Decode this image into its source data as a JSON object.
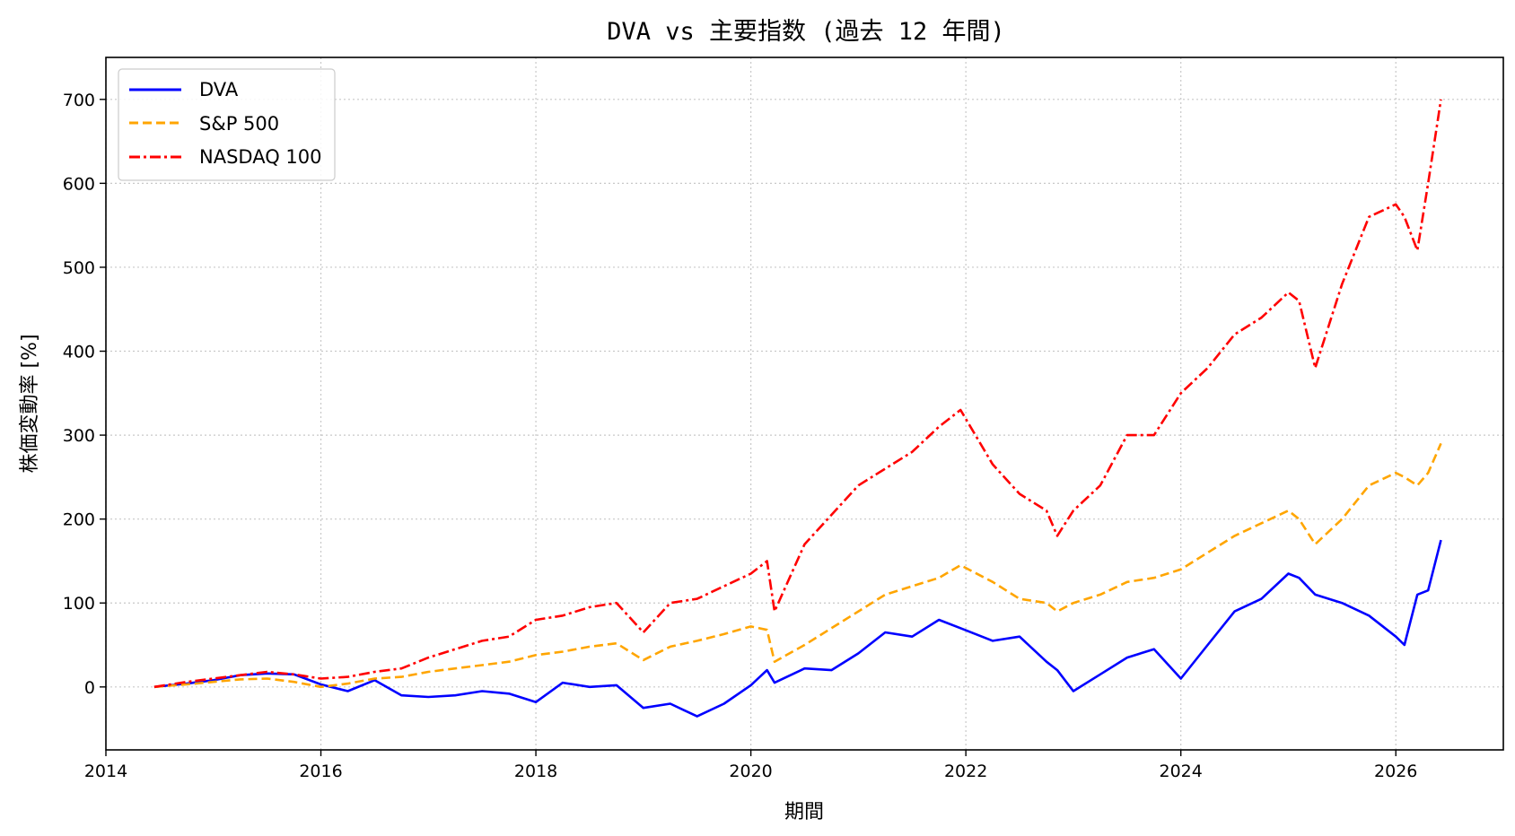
{
  "chart_data": {
    "type": "line",
    "title": "DVA vs 主要指数 (過去 12 年間)",
    "xlabel": "期間",
    "ylabel": "株価変動率 [%]",
    "xlim": [
      2014.0,
      2027.0
    ],
    "ylim": [
      -75,
      750
    ],
    "x_ticks": [
      2014,
      2016,
      2018,
      2020,
      2022,
      2024,
      2026
    ],
    "x_tick_labels": [
      "2014",
      "2016",
      "2018",
      "2020",
      "2022",
      "2024",
      "2026"
    ],
    "y_ticks": [
      0,
      100,
      200,
      300,
      400,
      500,
      600,
      700
    ],
    "y_tick_labels": [
      "0",
      "100",
      "200",
      "300",
      "400",
      "500",
      "600",
      "700"
    ],
    "grid": true,
    "legend_position": "top-left",
    "x": [
      2014.45,
      2014.75,
      2015.0,
      2015.25,
      2015.5,
      2015.75,
      2016.0,
      2016.25,
      2016.5,
      2016.75,
      2017.0,
      2017.25,
      2017.5,
      2017.75,
      2018.0,
      2018.25,
      2018.5,
      2018.75,
      2019.0,
      2019.25,
      2019.5,
      2019.75,
      2020.0,
      2020.15,
      2020.22,
      2020.5,
      2020.75,
      2021.0,
      2021.25,
      2021.5,
      2021.75,
      2021.95,
      2022.25,
      2022.5,
      2022.75,
      2022.85,
      2023.0,
      2023.25,
      2023.5,
      2023.75,
      2024.0,
      2024.25,
      2024.5,
      2024.75,
      2025.0,
      2025.1,
      2025.25,
      2025.5,
      2025.75,
      2026.0,
      2026.08,
      2026.2,
      2026.3,
      2026.42
    ],
    "series": [
      {
        "name": "DVA",
        "color": "#0000ff",
        "dash": "solid",
        "values": [
          0,
          4,
          8,
          14,
          16,
          15,
          3,
          -5,
          8,
          -10,
          -12,
          -10,
          -5,
          -8,
          -18,
          5,
          0,
          2,
          -25,
          -20,
          -35,
          -20,
          2,
          20,
          5,
          22,
          20,
          40,
          65,
          60,
          80,
          70,
          55,
          60,
          30,
          20,
          -5,
          15,
          35,
          45,
          10,
          50,
          90,
          105,
          135,
          130,
          110,
          100,
          85,
          60,
          50,
          110,
          115,
          175
        ]
      },
      {
        "name": "S&P 500",
        "color": "#ffa500",
        "dash": "dashed",
        "values": [
          0,
          3,
          6,
          9,
          10,
          6,
          0,
          4,
          10,
          12,
          18,
          22,
          26,
          30,
          38,
          42,
          48,
          52,
          32,
          48,
          55,
          63,
          72,
          68,
          30,
          50,
          70,
          90,
          110,
          120,
          130,
          145,
          125,
          105,
          100,
          90,
          100,
          110,
          125,
          130,
          140,
          160,
          180,
          195,
          210,
          200,
          170,
          200,
          240,
          255,
          250,
          240,
          255,
          290
        ]
      },
      {
        "name": "NASDAQ 100",
        "color": "#ff0000",
        "dash": "dashdot",
        "values": [
          0,
          6,
          10,
          14,
          18,
          15,
          10,
          12,
          18,
          22,
          35,
          45,
          55,
          60,
          80,
          85,
          95,
          100,
          65,
          100,
          105,
          120,
          135,
          150,
          90,
          170,
          205,
          240,
          260,
          280,
          310,
          330,
          265,
          230,
          210,
          180,
          210,
          240,
          300,
          300,
          350,
          380,
          420,
          440,
          470,
          460,
          380,
          480,
          560,
          575,
          560,
          520,
          600,
          700
        ]
      }
    ]
  }
}
